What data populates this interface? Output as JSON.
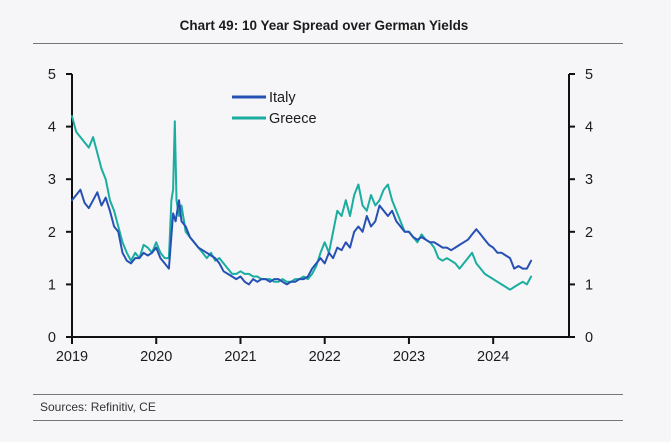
{
  "chart_data": {
    "type": "line",
    "title": "Chart 49: 10 Year Spread over German Yields",
    "source": "Sources: Refinitiv, CE",
    "x_range": [
      2019.0,
      2024.9
    ],
    "x_ticks": [
      "2019",
      "2020",
      "2021",
      "2022",
      "2023",
      "2024"
    ],
    "x_tick_values": [
      2019,
      2020,
      2021,
      2022,
      2023,
      2024
    ],
    "y_range_left": [
      0,
      5
    ],
    "y_range_right": [
      0,
      5
    ],
    "y_ticks_left": [
      "0",
      "1",
      "2",
      "3",
      "4",
      "5"
    ],
    "y_ticks_right": [
      "0",
      "1",
      "2",
      "3",
      "4",
      "5"
    ],
    "grid": false,
    "legend": "top-center",
    "colors": {
      "Italy": "#2750b4",
      "Greece": "#1aada0"
    },
    "series": [
      {
        "name": "Italy",
        "x": [
          2019.0,
          2019.05,
          2019.1,
          2019.15,
          2019.2,
          2019.25,
          2019.3,
          2019.35,
          2019.4,
          2019.45,
          2019.5,
          2019.55,
          2019.6,
          2019.65,
          2019.7,
          2019.75,
          2019.8,
          2019.85,
          2019.9,
          2019.95,
          2020.0,
          2020.05,
          2020.1,
          2020.15,
          2020.2,
          2020.23,
          2020.27,
          2020.3,
          2020.35,
          2020.4,
          2020.45,
          2020.5,
          2020.55,
          2020.6,
          2020.65,
          2020.7,
          2020.75,
          2020.8,
          2020.85,
          2020.9,
          2020.95,
          2021.0,
          2021.05,
          2021.1,
          2021.15,
          2021.2,
          2021.25,
          2021.3,
          2021.35,
          2021.4,
          2021.45,
          2021.5,
          2021.55,
          2021.6,
          2021.65,
          2021.7,
          2021.75,
          2021.8,
          2021.85,
          2021.9,
          2021.95,
          2022.0,
          2022.05,
          2022.1,
          2022.15,
          2022.2,
          2022.25,
          2022.3,
          2022.35,
          2022.4,
          2022.45,
          2022.5,
          2022.55,
          2022.6,
          2022.65,
          2022.7,
          2022.75,
          2022.8,
          2022.85,
          2022.9,
          2022.95,
          2023.0,
          2023.05,
          2023.1,
          2023.15,
          2023.2,
          2023.25,
          2023.3,
          2023.35,
          2023.4,
          2023.45,
          2023.5,
          2023.55,
          2023.6,
          2023.65,
          2023.7,
          2023.75,
          2023.8,
          2023.85,
          2023.9,
          2023.95,
          2024.0,
          2024.05,
          2024.1,
          2024.15,
          2024.2,
          2024.25,
          2024.3,
          2024.35,
          2024.4,
          2024.45
        ],
        "values": [
          2.6,
          2.7,
          2.8,
          2.55,
          2.45,
          2.6,
          2.75,
          2.5,
          2.65,
          2.4,
          2.1,
          2.0,
          1.6,
          1.45,
          1.4,
          1.5,
          1.5,
          1.6,
          1.55,
          1.6,
          1.7,
          1.5,
          1.4,
          1.3,
          2.35,
          2.2,
          2.6,
          2.2,
          2.1,
          1.9,
          1.8,
          1.7,
          1.65,
          1.6,
          1.55,
          1.5,
          1.4,
          1.25,
          1.2,
          1.15,
          1.1,
          1.15,
          1.05,
          1.0,
          1.1,
          1.05,
          1.1,
          1.1,
          1.05,
          1.1,
          1.1,
          1.05,
          1.0,
          1.05,
          1.05,
          1.1,
          1.1,
          1.15,
          1.3,
          1.4,
          1.5,
          1.4,
          1.6,
          1.5,
          1.7,
          1.65,
          1.8,
          1.7,
          2.0,
          2.1,
          2.0,
          2.3,
          2.1,
          2.2,
          2.5,
          2.4,
          2.3,
          2.4,
          2.2,
          2.1,
          2.0,
          2.0,
          1.9,
          1.85,
          1.9,
          1.85,
          1.8,
          1.8,
          1.75,
          1.7,
          1.7,
          1.65,
          1.7,
          1.75,
          1.8,
          1.85,
          1.95,
          2.05,
          1.95,
          1.85,
          1.75,
          1.7,
          1.6,
          1.6,
          1.55,
          1.5,
          1.3,
          1.35,
          1.3,
          1.3,
          1.45
        ]
      },
      {
        "name": "Greece",
        "x": [
          2019.0,
          2019.05,
          2019.1,
          2019.15,
          2019.2,
          2019.25,
          2019.3,
          2019.35,
          2019.4,
          2019.45,
          2019.5,
          2019.55,
          2019.6,
          2019.65,
          2019.7,
          2019.75,
          2019.8,
          2019.85,
          2019.9,
          2019.95,
          2020.0,
          2020.05,
          2020.1,
          2020.15,
          2020.18,
          2020.2,
          2020.22,
          2020.24,
          2020.27,
          2020.3,
          2020.35,
          2020.4,
          2020.45,
          2020.5,
          2020.55,
          2020.6,
          2020.65,
          2020.7,
          2020.75,
          2020.8,
          2020.85,
          2020.9,
          2020.95,
          2021.0,
          2021.05,
          2021.1,
          2021.15,
          2021.2,
          2021.25,
          2021.3,
          2021.35,
          2021.4,
          2021.45,
          2021.5,
          2021.55,
          2021.6,
          2021.65,
          2021.7,
          2021.75,
          2021.8,
          2021.85,
          2021.9,
          2021.95,
          2022.0,
          2022.05,
          2022.1,
          2022.15,
          2022.2,
          2022.25,
          2022.3,
          2022.35,
          2022.4,
          2022.45,
          2022.5,
          2022.55,
          2022.6,
          2022.65,
          2022.7,
          2022.75,
          2022.8,
          2022.85,
          2022.9,
          2022.95,
          2023.0,
          2023.05,
          2023.1,
          2023.15,
          2023.2,
          2023.25,
          2023.3,
          2023.35,
          2023.4,
          2023.45,
          2023.5,
          2023.55,
          2023.6,
          2023.65,
          2023.7,
          2023.75,
          2023.8,
          2023.85,
          2023.9,
          2023.95,
          2024.0,
          2024.05,
          2024.1,
          2024.15,
          2024.2,
          2024.25,
          2024.3,
          2024.35,
          2024.4,
          2024.45
        ],
        "values": [
          4.2,
          3.9,
          3.8,
          3.7,
          3.6,
          3.8,
          3.5,
          3.2,
          3.0,
          2.6,
          2.4,
          2.1,
          1.8,
          1.6,
          1.45,
          1.6,
          1.5,
          1.75,
          1.7,
          1.6,
          1.8,
          1.6,
          1.5,
          1.5,
          2.6,
          2.8,
          4.1,
          2.6,
          2.3,
          2.5,
          2.0,
          1.9,
          1.8,
          1.7,
          1.6,
          1.5,
          1.6,
          1.45,
          1.5,
          1.4,
          1.3,
          1.2,
          1.2,
          1.25,
          1.2,
          1.2,
          1.15,
          1.15,
          1.1,
          1.1,
          1.1,
          1.05,
          1.05,
          1.1,
          1.05,
          1.05,
          1.1,
          1.1,
          1.15,
          1.1,
          1.2,
          1.35,
          1.6,
          1.8,
          1.6,
          2.0,
          2.4,
          2.3,
          2.6,
          2.3,
          2.7,
          2.9,
          2.5,
          2.4,
          2.7,
          2.5,
          2.6,
          2.8,
          2.9,
          2.6,
          2.4,
          2.2,
          2.0,
          2.0,
          1.9,
          1.8,
          1.95,
          1.85,
          1.8,
          1.7,
          1.5,
          1.45,
          1.5,
          1.45,
          1.4,
          1.3,
          1.4,
          1.5,
          1.6,
          1.4,
          1.3,
          1.2,
          1.15,
          1.1,
          1.05,
          1.0,
          0.95,
          0.9,
          0.95,
          1.0,
          1.05,
          1.0,
          1.15
        ]
      }
    ]
  }
}
